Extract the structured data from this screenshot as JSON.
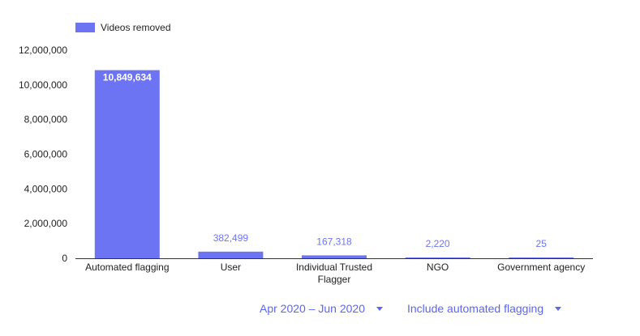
{
  "chart_data": {
    "type": "bar",
    "categories": [
      [
        "Automated flagging"
      ],
      [
        "User"
      ],
      [
        "Individual Trusted",
        "Flagger"
      ],
      [
        "NGO"
      ],
      [
        "Government agency"
      ]
    ],
    "series": [
      {
        "name": "Videos removed",
        "values": [
          10849634,
          382499,
          167318,
          2220,
          25
        ],
        "value_labels": [
          "10,849,634",
          "382,499",
          "167,318",
          "2,220",
          "25"
        ]
      }
    ],
    "ylim": [
      0,
      12000000
    ],
    "yticks": [
      0,
      2000000,
      4000000,
      6000000,
      8000000,
      10000000,
      12000000
    ],
    "ytick_labels": [
      "0",
      "2,000,000",
      "4,000,000",
      "6,000,000",
      "8,000,000",
      "10,000,000",
      "12,000,000"
    ],
    "legend_position": "top-left",
    "grid": false,
    "colors": {
      "bar": "#6d74f3"
    }
  },
  "filters": {
    "date_range": "Apr 2020 – Jun 2020",
    "flagging_option": "Include automated flagging"
  }
}
